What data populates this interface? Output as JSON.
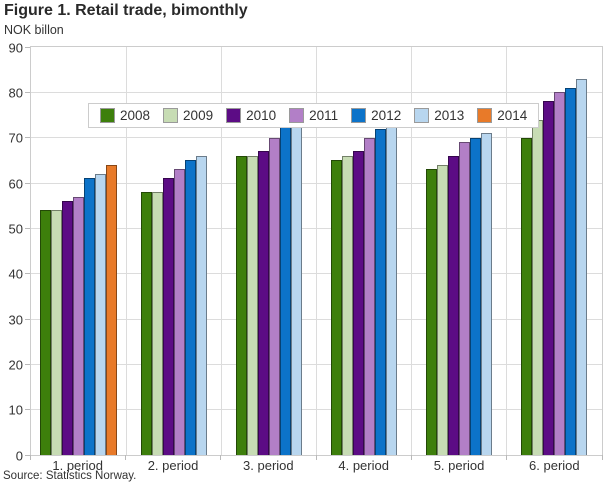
{
  "chart_data": {
    "type": "bar",
    "title": "Figure 1. Retail trade, bimonthly",
    "subtitle": "NOK billon",
    "source": "Source: Statistics Norway.",
    "categories": [
      "1. period",
      "2. period",
      "3. period",
      "4. period",
      "5. period",
      "6. period"
    ],
    "ylim": [
      0,
      90
    ],
    "yticks": [
      0,
      10,
      20,
      30,
      40,
      50,
      60,
      70,
      80,
      90
    ],
    "grid": true,
    "legend_position": "top",
    "series": [
      {
        "name": "2008",
        "color": "#3d7f0b",
        "values": [
          54,
          58,
          66,
          65,
          63,
          70
        ]
      },
      {
        "name": "2009",
        "color": "#c7dcb4",
        "values": [
          54,
          58,
          66,
          66,
          64,
          74
        ]
      },
      {
        "name": "2010",
        "color": "#5c0c85",
        "values": [
          56,
          61,
          67,
          67,
          66,
          78
        ]
      },
      {
        "name": "2011",
        "color": "#b27fc7",
        "values": [
          57,
          63,
          70,
          70,
          69,
          80
        ]
      },
      {
        "name": "2012",
        "color": "#0c73c9",
        "values": [
          61,
          65,
          74,
          72,
          70,
          81
        ]
      },
      {
        "name": "2013",
        "color": "#b8d6ef",
        "values": [
          62,
          66,
          75,
          75,
          71,
          83
        ]
      },
      {
        "name": "2014",
        "color": "#e87a29",
        "values": [
          64,
          null,
          null,
          null,
          null,
          null
        ]
      }
    ]
  },
  "colors": {
    "grid": "#dcdcdc",
    "axis": "#cccccc",
    "text": "#333333",
    "title_text": "#292929",
    "bar_border": "rgba(0,0,0,0.42)"
  }
}
